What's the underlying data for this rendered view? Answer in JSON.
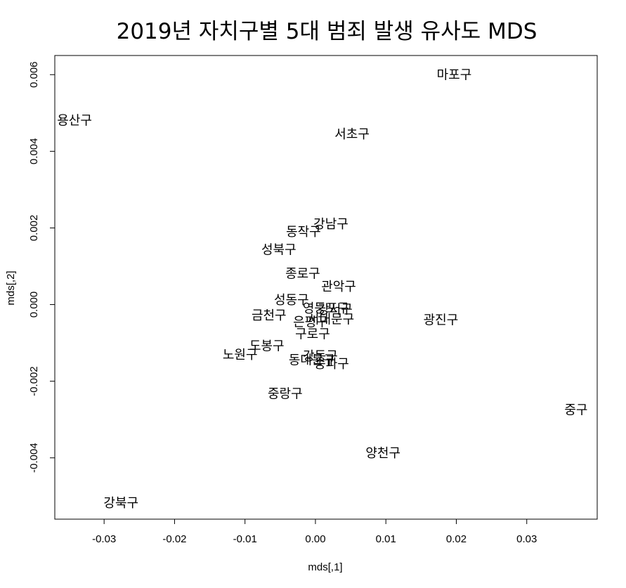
{
  "chart_data": {
    "type": "scatter",
    "title": "2019년 자치구별 5대 범죄 발생 유사도 MDS",
    "xlabel": "mds[,1]",
    "ylabel": "mds[,2]",
    "xlim": [
      -0.037,
      0.04
    ],
    "ylim": [
      -0.0056,
      0.0065
    ],
    "xticks": [
      -0.03,
      -0.02,
      -0.01,
      0.0,
      0.01,
      0.02,
      0.03
    ],
    "xtick_labels": [
      "-0.03",
      "-0.02",
      "-0.01",
      "0.00",
      "0.01",
      "0.02",
      "0.03"
    ],
    "yticks": [
      -0.004,
      -0.002,
      0.0,
      0.002,
      0.004,
      0.006
    ],
    "ytick_labels": [
      "-0.004",
      "-0.002",
      "0.000",
      "0.002",
      "0.004",
      "0.006"
    ],
    "grid": false,
    "points": [
      {
        "label": "마포구",
        "x": 0.0197,
        "y": 0.006
      },
      {
        "label": "용산구",
        "x": -0.0342,
        "y": 0.0048
      },
      {
        "label": "서초구",
        "x": 0.0052,
        "y": 0.00445
      },
      {
        "label": "강남구",
        "x": 0.0022,
        "y": 0.0021
      },
      {
        "label": "동작구",
        "x": -0.0017,
        "y": 0.0019
      },
      {
        "label": "성북구",
        "x": -0.0052,
        "y": 0.00143
      },
      {
        "label": "종로구",
        "x": -0.0018,
        "y": 0.00081
      },
      {
        "label": "관악구",
        "x": 0.0033,
        "y": 0.00047
      },
      {
        "label": "성동구",
        "x": -0.0034,
        "y": 0.00012
      },
      {
        "label": "영등포구",
        "x": 0.0015,
        "y": -0.0001
      },
      {
        "label": "강서구",
        "x": 0.0028,
        "y": -0.00013
      },
      {
        "label": "금천구",
        "x": -0.0066,
        "y": -0.00028
      },
      {
        "label": "서대문구",
        "x": 0.0022,
        "y": -0.00038
      },
      {
        "label": "은평구",
        "x": -0.0007,
        "y": -0.00046
      },
      {
        "label": "광진구",
        "x": 0.0178,
        "y": -0.0004
      },
      {
        "label": "구로구",
        "x": -0.0004,
        "y": -0.00077
      },
      {
        "label": "도봉구",
        "x": -0.0069,
        "y": -0.00108
      },
      {
        "label": "노원구",
        "x": -0.0107,
        "y": -0.00131
      },
      {
        "label": "강동구",
        "x": 0.0007,
        "y": -0.00135
      },
      {
        "label": "동대문구",
        "x": -0.0005,
        "y": -0.00145
      },
      {
        "label": "송파구",
        "x": 0.0023,
        "y": -0.00155
      },
      {
        "label": "중랑구",
        "x": -0.0043,
        "y": -0.00233
      },
      {
        "label": "중구",
        "x": 0.037,
        "y": -0.00275
      },
      {
        "label": "양천구",
        "x": 0.0096,
        "y": -0.00388
      },
      {
        "label": "강북구",
        "x": -0.0276,
        "y": -0.00518
      }
    ]
  }
}
